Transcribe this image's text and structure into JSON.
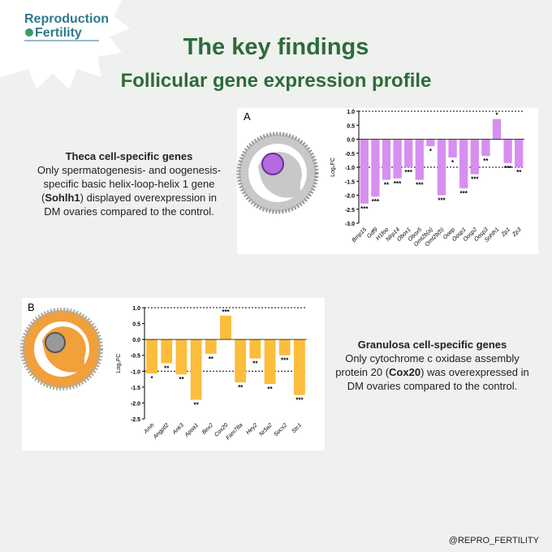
{
  "logo": {
    "line1": "Reproduction",
    "line2": "Fertility"
  },
  "heading": {
    "title": "The key findings",
    "subtitle": "Follicular gene expression profile"
  },
  "theca": {
    "title": "Theca cell-specific genes",
    "body": [
      "Only spermatogenesis- and oogenesis-specific basic helix-loop-helix 1 gene (",
      "Sohlh1",
      ") displayed overexpression in DM ovaries compared to the control."
    ]
  },
  "granulosa": {
    "title": "Granulosa cell-specific genes",
    "body": [
      "Only cytochrome c oxidase assembly protein 20 (",
      "Cox20",
      ") was overexpressed in DM ovaries compared to the control."
    ]
  },
  "footer": "@REPRO_FERTILITY",
  "chart_data": [
    {
      "type": "bar",
      "panel_label": "A",
      "y_label": "Log₂FC",
      "color": "#d68ff0",
      "categories": [
        "Bmp15",
        "Gdf9",
        "H1foo",
        "Nlrp14",
        "Obox1",
        "Obox5",
        "Omt2b(a)",
        "Omt2b(b)",
        "Ooep",
        "Oosp1",
        "Oosp2",
        "Oosp3",
        "Sohlh1",
        "Zp1",
        "Zp3"
      ],
      "values": [
        -2.3,
        -2.05,
        -1.45,
        -1.4,
        -1.0,
        -1.45,
        -0.25,
        -2.0,
        -0.65,
        -1.75,
        -1.25,
        -0.6,
        0.72,
        -0.85,
        -1.0
      ],
      "significance": [
        "***",
        "***",
        "**",
        "***",
        "***",
        "***",
        "*",
        "***",
        "*",
        "***",
        "***",
        "**",
        "*",
        "***",
        "**"
      ],
      "ylim": [
        -3,
        1
      ],
      "yticks": [
        {
          "value": 1,
          "label": "1.0"
        },
        {
          "value": 0.5,
          "label": "0.5"
        },
        {
          "value": 0,
          "label": "0.0"
        },
        {
          "value": -0.5,
          "label": "-0.5"
        },
        {
          "value": -1,
          "label": "-1.0"
        },
        {
          "value": -1.5,
          "label": "-1.5"
        },
        {
          "value": -2,
          "label": "-2.0"
        },
        {
          "value": -2.5,
          "label": "-2.5"
        },
        {
          "value": -3,
          "label": "-3.0"
        }
      ],
      "reference_lines": [
        1,
        -1
      ]
    },
    {
      "type": "bar",
      "panel_label": "B",
      "y_label": "Log₂FC",
      "color": "#fbbd3c",
      "categories": [
        "Amh",
        "Angptl2",
        "Ank3",
        "Apoa1",
        "Bex2",
        "Cox20",
        "Fam78a",
        "Hey2",
        "Nr5a2",
        "Socs2",
        "Stc1"
      ],
      "values": [
        -1.07,
        -0.75,
        -1.1,
        -1.9,
        -0.45,
        0.75,
        -1.35,
        -0.6,
        -1.4,
        -0.5,
        -1.75
      ],
      "significance": [
        "*",
        "**",
        "**",
        "**",
        "**",
        "***",
        "**",
        "**",
        "**",
        "***",
        "***"
      ],
      "ylim": [
        -2.5,
        1
      ],
      "yticks": [
        {
          "value": 1,
          "label": "1.0"
        },
        {
          "value": 0.5,
          "label": "0.5"
        },
        {
          "value": 0,
          "label": "0.0"
        },
        {
          "value": -0.5,
          "label": "-0.5"
        },
        {
          "value": -1,
          "label": "-1.0"
        },
        {
          "value": -1.5,
          "label": "-1.5"
        },
        {
          "value": -2,
          "label": "-2.0"
        },
        {
          "value": -2.5,
          "label": "-2.5"
        }
      ],
      "reference_lines": [
        1,
        -1
      ]
    }
  ]
}
